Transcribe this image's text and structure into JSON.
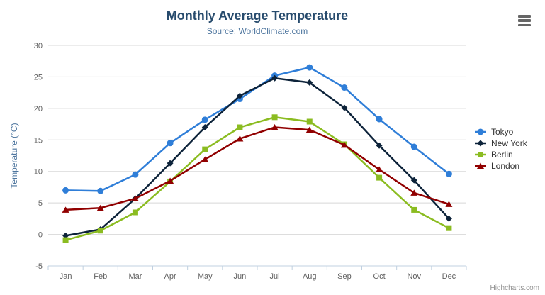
{
  "title": "Monthly Average Temperature",
  "subtitle": "Source: WorldClimate.com",
  "credits": "Highcharts.com",
  "export_menu": {
    "icon": "hamburger-menu-icon"
  },
  "chart_data": {
    "type": "line",
    "title": "Monthly Average Temperature",
    "subtitle": "Source: WorldClimate.com",
    "xlabel": "",
    "ylabel": "Temperature (°C)",
    "ylim": [
      -5,
      30
    ],
    "yticks": [
      -5,
      0,
      5,
      10,
      15,
      20,
      25,
      30
    ],
    "grid": true,
    "legend_position": "right",
    "categories": [
      "Jan",
      "Feb",
      "Mar",
      "Apr",
      "May",
      "Jun",
      "Jul",
      "Aug",
      "Sep",
      "Oct",
      "Nov",
      "Dec"
    ],
    "series": [
      {
        "name": "Tokyo",
        "color": "#2f7ed8",
        "marker": "circle",
        "values": [
          7.0,
          6.9,
          9.5,
          14.5,
          18.2,
          21.5,
          25.2,
          26.5,
          23.3,
          18.3,
          13.9,
          9.6
        ]
      },
      {
        "name": "New York",
        "color": "#0d233a",
        "marker": "diamond",
        "values": [
          -0.2,
          0.8,
          5.7,
          11.3,
          17.0,
          22.0,
          24.8,
          24.1,
          20.1,
          14.1,
          8.6,
          2.5
        ]
      },
      {
        "name": "Berlin",
        "color": "#8bbc21",
        "marker": "square",
        "values": [
          -0.9,
          0.6,
          3.5,
          8.4,
          13.5,
          17.0,
          18.6,
          17.9,
          14.3,
          9.0,
          3.9,
          1.0
        ]
      },
      {
        "name": "London",
        "color": "#910000",
        "marker": "triangle",
        "values": [
          3.9,
          4.2,
          5.7,
          8.5,
          11.9,
          15.2,
          17.0,
          16.6,
          14.2,
          10.3,
          6.6,
          4.8
        ]
      }
    ],
    "colors": {
      "gridline": "#d8d8d8",
      "axis_line": "#c0d0e0",
      "tick": "#c0d0e0",
      "axis_label": "#606060",
      "axis_title": "#4d759e",
      "title": "#274b6d",
      "subtitle": "#4d759e"
    }
  }
}
